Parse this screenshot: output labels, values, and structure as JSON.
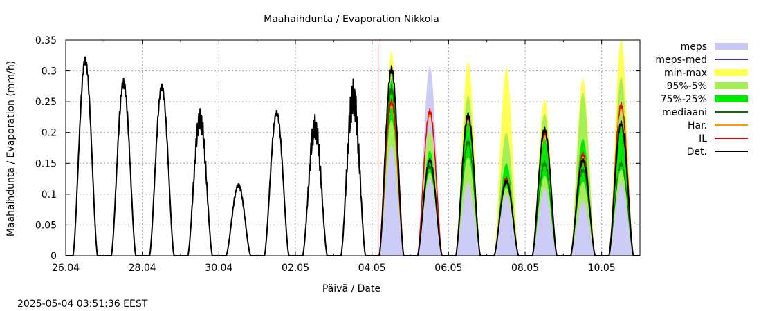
{
  "timestamp": "2025-05-04 03:51:36 EEST",
  "chart_data": {
    "type": "area",
    "title": "Maahaihdunta / Evaporation  Nikkola",
    "xlabel": "Päivä / Date",
    "ylabel": "Maahaihdunta / Evaporation (mm/h)",
    "xlim": [
      "2025-04-26T00:00",
      "2025-05-11T00:00"
    ],
    "ylim": [
      0,
      0.35
    ],
    "grid": true,
    "legend_position": "right",
    "y_ticks": [
      0,
      0.05,
      0.1,
      0.15,
      0.2,
      0.25,
      0.3,
      0.35
    ],
    "y_tick_labels": [
      "0",
      "0.05",
      "0.1",
      "0.15",
      "0.2",
      "0.25",
      "0.3",
      "0.35"
    ],
    "x_ticks": [
      "2025-04-26",
      "2025-04-28",
      "2025-04-30",
      "2025-05-02",
      "2025-05-04",
      "2025-05-06",
      "2025-05-08",
      "2025-05-10"
    ],
    "x_tick_labels": [
      "26.04",
      "28.04",
      "30.04",
      "02.05",
      "04.05",
      "06.05",
      "08.05",
      "10.05"
    ],
    "forecast_start": "2025-05-04T03:51",
    "legend": [
      {
        "label": "meps",
        "color": "#c7c7f5",
        "kind": "box"
      },
      {
        "label": "meps-med",
        "color": "#3333cc",
        "kind": "line"
      },
      {
        "label": "min-max",
        "color": "#ffff55",
        "kind": "box"
      },
      {
        "label": "95%-5%",
        "color": "#a6f055",
        "kind": "box"
      },
      {
        "label": "75%-25%",
        "color": "#00e800",
        "kind": "box"
      },
      {
        "label": "mediaani",
        "color": "#007700",
        "kind": "line"
      },
      {
        "label": "Har.",
        "color": "#ff9900",
        "kind": "line"
      },
      {
        "label": "IL",
        "color": "#ee0000",
        "kind": "line"
      },
      {
        "label": "Det.",
        "color": "#000000",
        "kind": "line"
      }
    ],
    "observed_daily_peaks": [
      {
        "date": "2025-04-26",
        "peak": 0.317
      },
      {
        "date": "2025-04-27",
        "peak": 0.28
      },
      {
        "date": "2025-04-28",
        "peak": 0.274
      },
      {
        "date": "2025-04-29",
        "peak": 0.222
      },
      {
        "date": "2025-04-30",
        "peak": 0.114
      },
      {
        "date": "2025-05-01",
        "peak": 0.232
      },
      {
        "date": "2025-05-02",
        "peak": 0.209
      },
      {
        "date": "2025-05-03",
        "peak": 0.257
      }
    ],
    "forecast_daily": [
      {
        "date": "2025-05-04",
        "det": 0.303,
        "il": 0.25,
        "median": 0.27,
        "q25": 0.22,
        "q75": 0.285,
        "p5": 0.18,
        "p95": 0.3,
        "min": 0.17,
        "max": 0.33,
        "meps": 0.24
      },
      {
        "date": "2025-05-05",
        "det": 0.155,
        "il": 0.235,
        "median": 0.145,
        "q25": 0.135,
        "q75": 0.17,
        "p5": 0.125,
        "p95": 0.2,
        "min": 0.12,
        "max": 0.24,
        "meps": 0.307
      },
      {
        "date": "2025-05-06",
        "det": 0.228,
        "il": 0.225,
        "median": 0.185,
        "q25": 0.16,
        "q75": 0.225,
        "p5": 0.12,
        "p95": 0.26,
        "min": 0.1,
        "max": 0.315,
        "meps": 0.2
      },
      {
        "date": "2025-05-07",
        "det": 0.12,
        "il": 0.125,
        "median": 0.125,
        "q25": 0.11,
        "q75": 0.15,
        "p5": 0.1,
        "p95": 0.2,
        "min": 0.09,
        "max": 0.305,
        "meps": 0.13
      },
      {
        "date": "2025-05-08",
        "det": 0.205,
        "il": 0.2,
        "median": 0.15,
        "q25": 0.13,
        "q75": 0.19,
        "p5": 0.11,
        "p95": 0.23,
        "min": 0.1,
        "max": 0.255,
        "meps": 0.15
      },
      {
        "date": "2025-05-09",
        "det": 0.155,
        "il": 0.165,
        "median": 0.14,
        "q25": 0.12,
        "q75": 0.19,
        "p5": 0.09,
        "p95": 0.265,
        "min": 0.08,
        "max": 0.288,
        "meps": 0.14
      },
      {
        "date": "2025-05-10",
        "det": 0.215,
        "il": 0.245,
        "median": 0.15,
        "q25": 0.14,
        "q75": 0.215,
        "p5": 0.12,
        "p95": 0.29,
        "min": 0.11,
        "max": 0.35,
        "meps": 0.16
      }
    ]
  }
}
